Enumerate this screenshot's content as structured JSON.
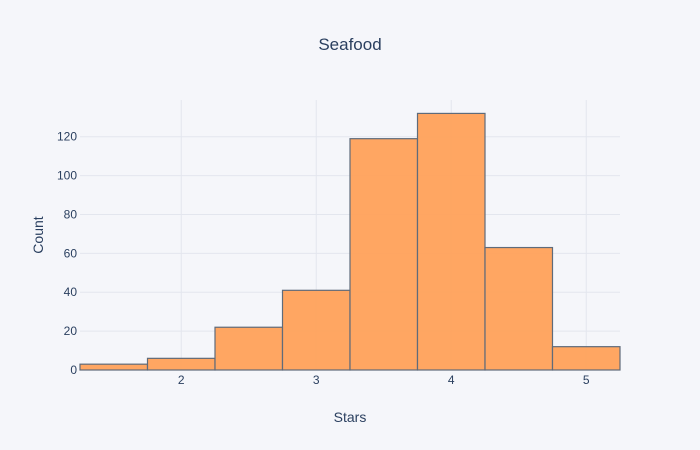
{
  "chart_data": {
    "type": "bar",
    "title": "Seafood",
    "xlabel": "Stars",
    "ylabel": "Count",
    "bins": [
      {
        "start": 1.25,
        "end": 1.75,
        "count": 3
      },
      {
        "start": 1.75,
        "end": 2.25,
        "count": 6
      },
      {
        "start": 2.25,
        "end": 2.75,
        "count": 22
      },
      {
        "start": 2.75,
        "end": 3.25,
        "count": 41
      },
      {
        "start": 3.25,
        "end": 3.75,
        "count": 119
      },
      {
        "start": 3.75,
        "end": 4.25,
        "count": 132
      },
      {
        "start": 4.25,
        "end": 4.75,
        "count": 63
      },
      {
        "start": 4.75,
        "end": 5.25,
        "count": 12
      }
    ],
    "xlim": [
      1.25,
      5.25
    ],
    "ylim": [
      0,
      138.9
    ],
    "xticks": [
      2,
      3,
      4,
      5
    ],
    "yticks": [
      0,
      20,
      40,
      60,
      80,
      100,
      120
    ],
    "grid": true,
    "colors": {
      "bar_fill": "#ffa15a",
      "bar_edge": "#5f6b7a",
      "background": "#f5f6fa",
      "grid": "#e3e6ee",
      "text": "#2a3f5f"
    }
  }
}
